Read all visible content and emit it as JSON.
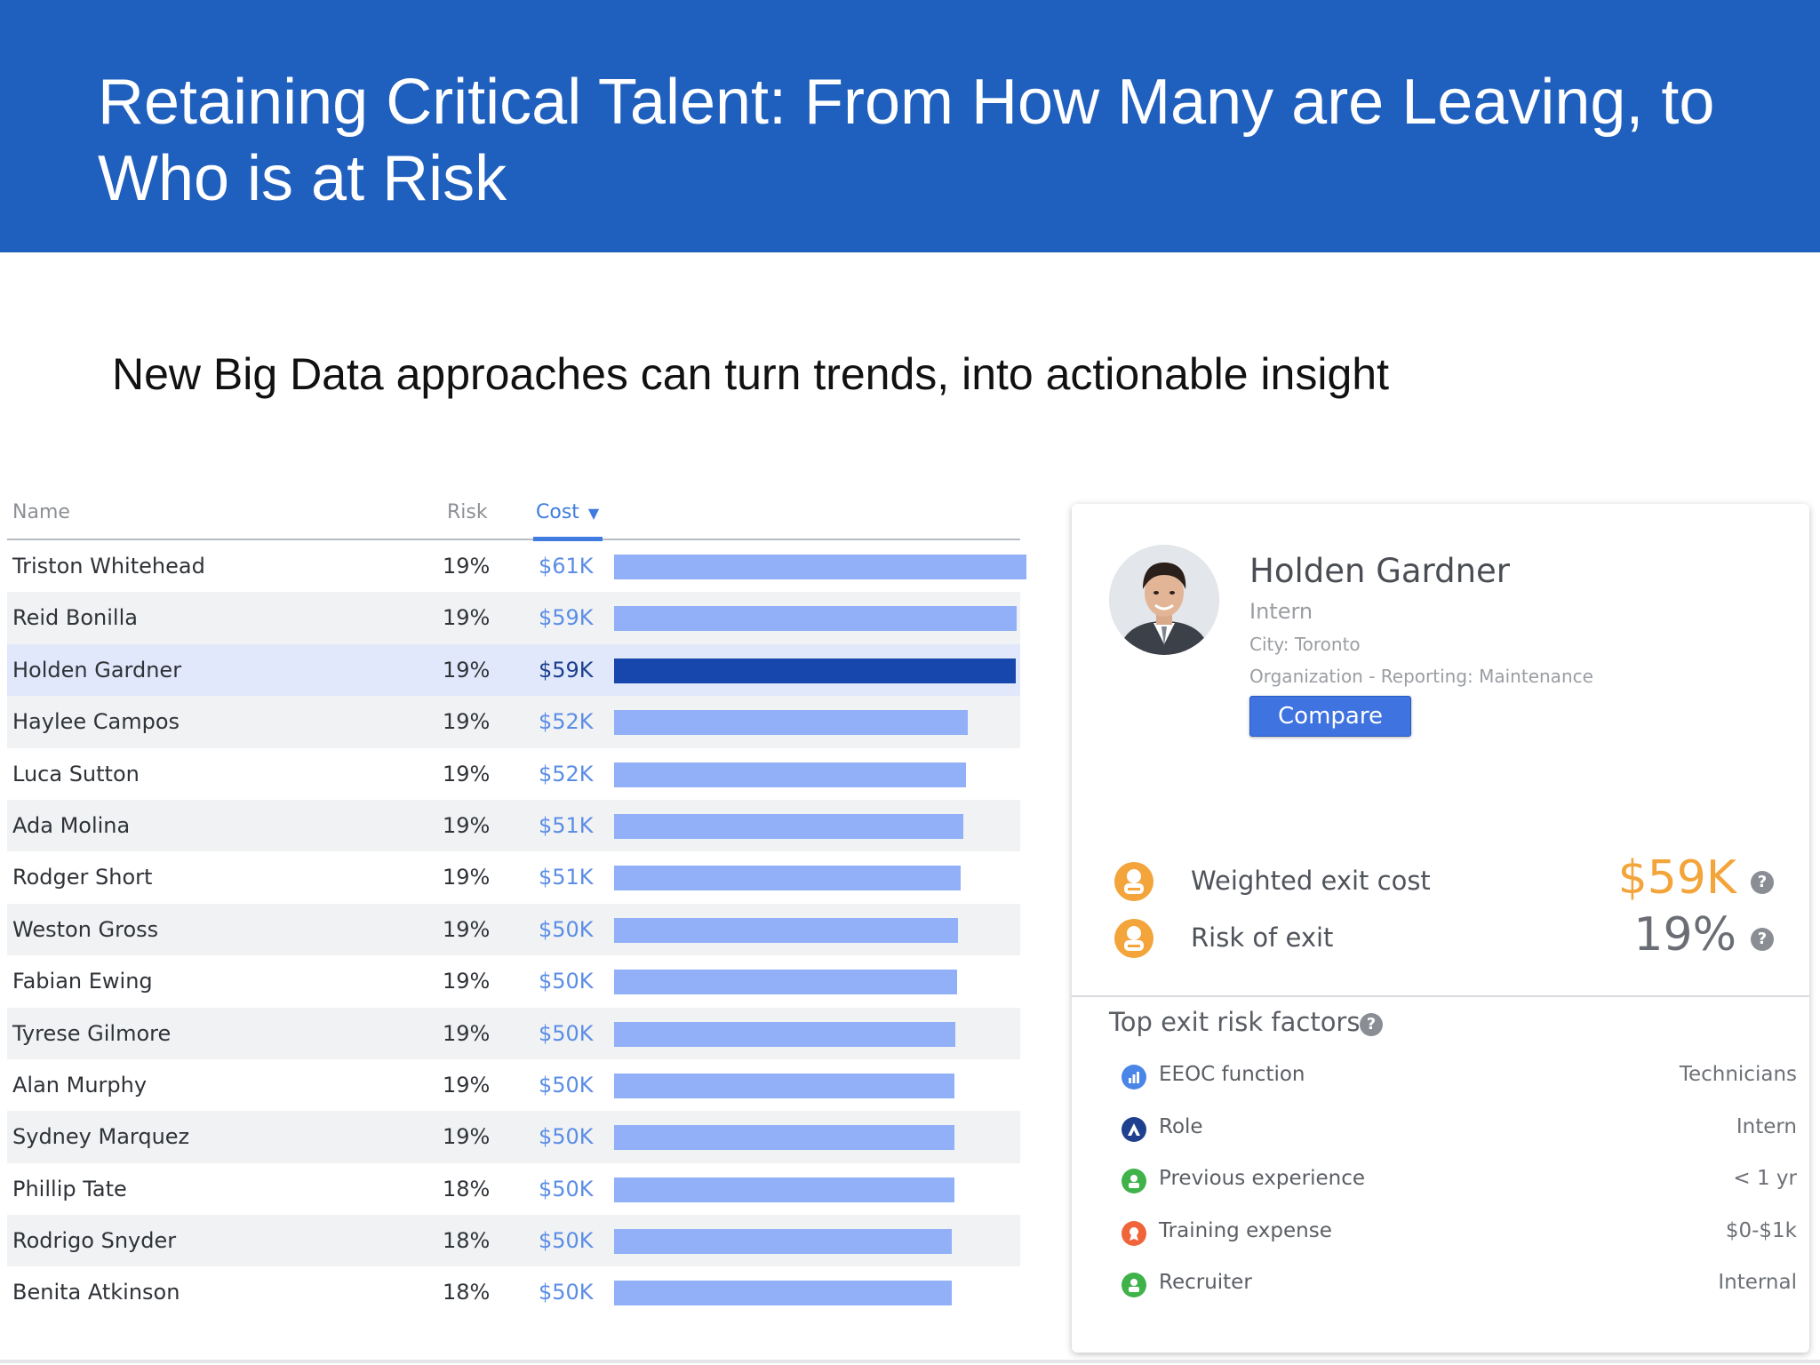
{
  "slide": {
    "title": "Retaining Critical Talent: From How Many are Leaving, to Who is at Risk",
    "subtitle": "New Big Data approaches can turn trends, into actionable insight"
  },
  "table": {
    "headers": {
      "name": "Name",
      "risk": "Risk",
      "cost": "Cost",
      "sort_indicator": "▼"
    },
    "rows": [
      {
        "name": "Triston Whitehead",
        "risk": "19%",
        "cost": "$61K",
        "cost_value": 61,
        "bar_fraction": 1.0
      },
      {
        "name": "Reid Bonilla",
        "risk": "19%",
        "cost": "$59K",
        "cost_value": 59,
        "bar_fraction": 0.977
      },
      {
        "name": "Holden Gardner",
        "risk": "19%",
        "cost": "$59K",
        "cost_value": 59,
        "bar_fraction": 0.974,
        "selected": true
      },
      {
        "name": "Haylee Campos",
        "risk": "19%",
        "cost": "$52K",
        "cost_value": 52,
        "bar_fraction": 0.857
      },
      {
        "name": "Luca Sutton",
        "risk": "19%",
        "cost": "$52K",
        "cost_value": 52,
        "bar_fraction": 0.854
      },
      {
        "name": "Ada Molina",
        "risk": "19%",
        "cost": "$51K",
        "cost_value": 51,
        "bar_fraction": 0.848
      },
      {
        "name": "Rodger Short",
        "risk": "19%",
        "cost": "$51K",
        "cost_value": 51,
        "bar_fraction": 0.84
      },
      {
        "name": "Weston Gross",
        "risk": "19%",
        "cost": "$50K",
        "cost_value": 50,
        "bar_fraction": 0.834
      },
      {
        "name": "Fabian Ewing",
        "risk": "19%",
        "cost": "$50K",
        "cost_value": 50,
        "bar_fraction": 0.831
      },
      {
        "name": "Tyrese Gilmore",
        "risk": "19%",
        "cost": "$50K",
        "cost_value": 50,
        "bar_fraction": 0.828
      },
      {
        "name": "Alan Murphy",
        "risk": "19%",
        "cost": "$50K",
        "cost_value": 50,
        "bar_fraction": 0.825
      },
      {
        "name": "Sydney Marquez",
        "risk": "19%",
        "cost": "$50K",
        "cost_value": 50,
        "bar_fraction": 0.825
      },
      {
        "name": "Phillip Tate",
        "risk": "18%",
        "cost": "$50K",
        "cost_value": 50,
        "bar_fraction": 0.825
      },
      {
        "name": "Rodrigo Snyder",
        "risk": "18%",
        "cost": "$50K",
        "cost_value": 50,
        "bar_fraction": 0.82
      },
      {
        "name": "Benita Atkinson",
        "risk": "18%",
        "cost": "$50K",
        "cost_value": 50,
        "bar_fraction": 0.82
      }
    ]
  },
  "detail": {
    "name": "Holden Gardner",
    "role": "Intern",
    "city": "City: Toronto",
    "organization": "Organization - Reporting: Maintenance",
    "compare_label": "Compare",
    "metrics": {
      "cost_label": "Weighted exit cost",
      "cost_value": "$59K",
      "risk_label": "Risk of exit",
      "risk_value": "19%"
    },
    "help_glyph": "?",
    "factors_title": "Top exit risk factors",
    "factors": [
      {
        "label": "EEOC function",
        "value": "Technicians",
        "icon": "chart-icon",
        "color": "#4a86e8"
      },
      {
        "label": "Role",
        "value": "Intern",
        "icon": "role-icon",
        "color": "#1f3f8f"
      },
      {
        "label": "Previous experience",
        "value": "< 1 yr",
        "icon": "experience-icon",
        "color": "#3fb24a"
      },
      {
        "label": "Training expense",
        "value": "$0-$1k",
        "icon": "training-icon",
        "color": "#f0643a"
      },
      {
        "label": "Recruiter",
        "value": "Internal",
        "icon": "recruiter-icon",
        "color": "#3fb24a"
      }
    ]
  },
  "colors": {
    "banner": "#1f5fbe",
    "bar": "#91b0f8",
    "bar_selected": "#1747ad",
    "accent_orange": "#f3a43a"
  }
}
